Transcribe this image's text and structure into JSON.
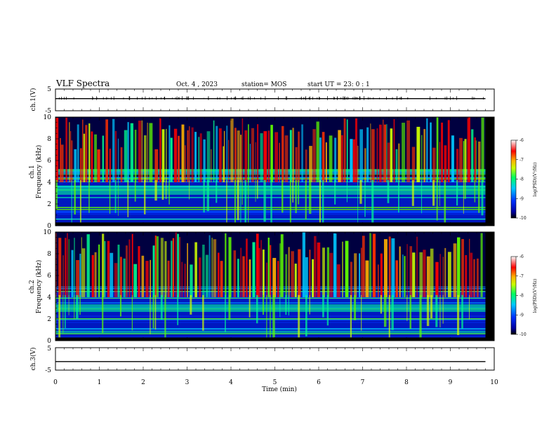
{
  "header": {
    "title": "VLF Spectra",
    "date": "Oct. 4 , 2023",
    "station": "station= MOS",
    "start_ut": "start UT =  23: 0  : 1"
  },
  "chart_data": [
    {
      "type": "line",
      "panel": "ch1-voltage",
      "ylabel": "ch.1(V)",
      "ylim": [
        -5,
        5
      ],
      "yticks": [
        "5",
        "-5"
      ],
      "xlim": [
        0,
        10
      ],
      "x": [
        0,
        9.8
      ],
      "y": [
        0.6,
        0.6
      ]
    },
    {
      "type": "heatmap",
      "panel": "ch1-spectrogram",
      "ylabel": "ch.1\nFrequency (kHz)",
      "ylim": [
        0,
        10
      ],
      "yticks": [
        "0",
        "2",
        "4",
        "6",
        "8",
        "10"
      ],
      "xlim": [
        0,
        10
      ],
      "colorbar": {
        "label": "log(PSD)(V²/Hz)",
        "ticks": [
          "-6",
          "-7",
          "-8",
          "-9",
          "-10"
        ],
        "range": [
          -10,
          -6
        ]
      }
    },
    {
      "type": "heatmap",
      "panel": "ch2-spectrogram",
      "ylabel": "ch.2\nFrequency (kHz)",
      "ylim": [
        0,
        10
      ],
      "yticks": [
        "0",
        "2",
        "4",
        "6",
        "8",
        "10"
      ],
      "xlim": [
        0,
        10
      ],
      "colorbar": {
        "label": "log(PSD)(V²/Hz)",
        "ticks": [
          "-6",
          "-7",
          "-8",
          "-9",
          "-10"
        ],
        "range": [
          -10,
          -6
        ]
      }
    },
    {
      "type": "line",
      "panel": "ch3-voltage",
      "ylabel": "ch.3(V)",
      "ylim": [
        -5,
        5
      ],
      "yticks": [
        "5",
        "-5"
      ],
      "xlim": [
        0,
        10
      ],
      "x": [
        0,
        9.8
      ],
      "y": [
        -1.2,
        -1.2
      ]
    }
  ],
  "x_axis": {
    "label": "Time (min)",
    "ticks": [
      "0",
      "1",
      "2",
      "3",
      "4",
      "5",
      "6",
      "7",
      "8",
      "9",
      "10"
    ]
  }
}
